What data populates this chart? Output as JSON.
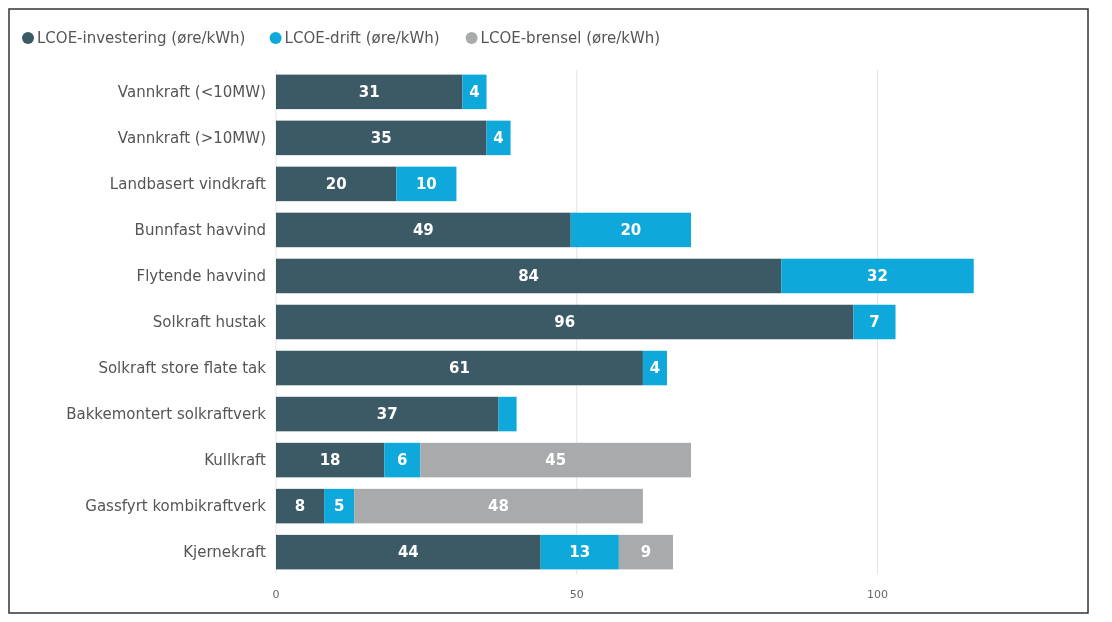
{
  "chart_data": {
    "type": "bar",
    "orientation": "horizontal",
    "stacked": true,
    "categories": [
      "Vannkraft (<10MW)",
      "Vannkraft (>10MW)",
      "Landbasert vindkraft",
      "Bunnfast havvind",
      "Flytende havvind",
      "Solkraft hustak",
      "Solkraft store flate tak",
      "Bakkemontert solkraftverk",
      "Kullkraft",
      "Gassfyrt kombikraftverk",
      "Kjernekraft"
    ],
    "series": [
      {
        "name": "LCOE-investering (øre/kWh)",
        "color": "#3c5a66",
        "values": [
          31,
          35,
          20,
          49,
          84,
          96,
          61,
          37,
          18,
          8,
          44
        ],
        "value_labels": [
          "31",
          "35",
          "20",
          "49",
          "84",
          "96",
          "61",
          "37",
          "18",
          "8",
          "44"
        ]
      },
      {
        "name": "LCOE-drift (øre/kWh)",
        "color": "#0fa8da",
        "values": [
          4,
          4,
          10,
          20,
          32,
          7,
          4,
          3,
          6,
          5,
          13
        ],
        "value_labels": [
          "4",
          "4",
          "10",
          "20",
          "32",
          "7",
          "4",
          null,
          "6",
          "5",
          "13"
        ]
      },
      {
        "name": "LCOE-brensel (øre/kWh)",
        "color": "#a8aaab",
        "values": [
          null,
          null,
          null,
          null,
          null,
          null,
          null,
          null,
          45,
          48,
          9
        ],
        "value_labels": [
          null,
          null,
          null,
          null,
          null,
          null,
          null,
          null,
          "45",
          "48",
          "9"
        ]
      }
    ],
    "xlim": [
      0,
      135
    ],
    "xticks": [
      0,
      50,
      100
    ],
    "grid": "x",
    "legend": "top left"
  }
}
